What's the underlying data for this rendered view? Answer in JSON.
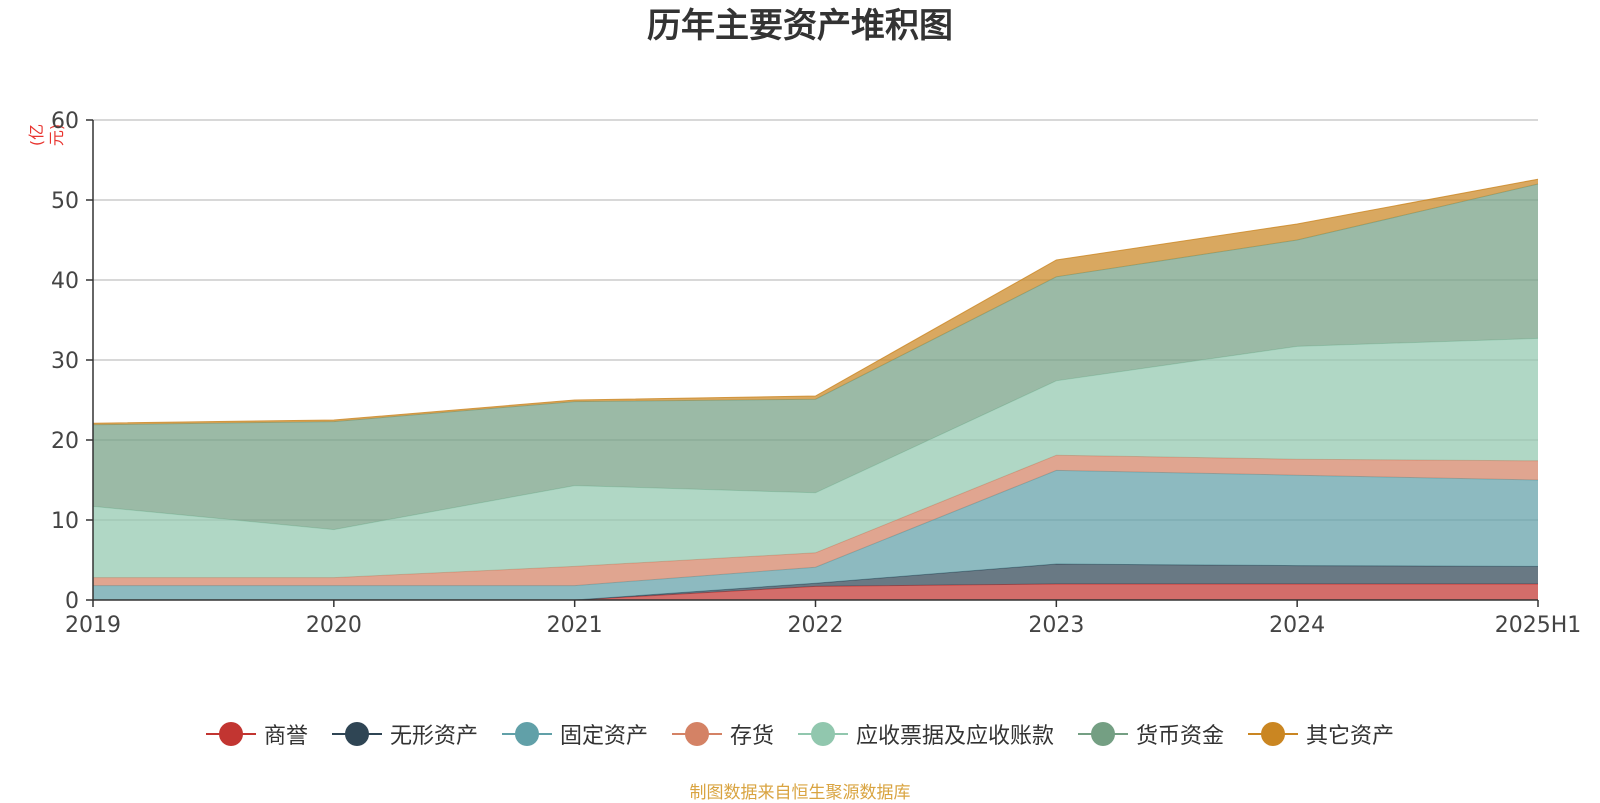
{
  "chart_data": {
    "type": "area",
    "title": "历年主要资产堆积图",
    "unit_label": "(亿元)",
    "categories": [
      "2019",
      "2020",
      "2021",
      "2022",
      "2023",
      "2024",
      "2025H1"
    ],
    "ylim": [
      0,
      60
    ],
    "yticks": [
      0,
      10,
      20,
      30,
      40,
      50,
      60
    ],
    "grid": true,
    "stacked": true,
    "legend_position": "bottom",
    "series": [
      {
        "name": "商誉",
        "color": "#c23531",
        "values": [
          0,
          0,
          0,
          1.7,
          2.0,
          2.0,
          2.0
        ]
      },
      {
        "name": "无形资产",
        "color": "#2f4554",
        "values": [
          0,
          0,
          0,
          0.4,
          2.5,
          2.3,
          2.2
        ]
      },
      {
        "name": "固定资产",
        "color": "#61a0a8",
        "values": [
          1.8,
          1.8,
          1.8,
          2.0,
          11.7,
          11.3,
          10.8
        ]
      },
      {
        "name": "存货",
        "color": "#d48265",
        "values": [
          1.0,
          1.0,
          2.4,
          1.8,
          1.9,
          2.0,
          2.4
        ]
      },
      {
        "name": "应收票据及应收账款",
        "color": "#91c7ae",
        "values": [
          8.9,
          6.0,
          10.1,
          7.5,
          9.3,
          14.1,
          15.3
        ]
      },
      {
        "name": "货币资金",
        "color": "#749f83",
        "values": [
          10.2,
          13.5,
          10.5,
          11.7,
          13.0,
          13.3,
          19.3
        ]
      },
      {
        "name": "其它资产",
        "color": "#ca8622",
        "values": [
          0.2,
          0.2,
          0.2,
          0.4,
          2.1,
          2.0,
          0.6
        ]
      }
    ]
  },
  "source_note": "制图数据来自恒生聚源数据库"
}
